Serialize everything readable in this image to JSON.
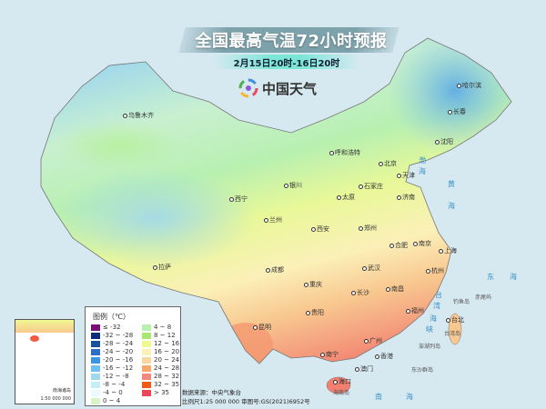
{
  "header": {
    "title": "全国最高气温72小时预报",
    "subtitle": "2月15日20时-16日20时",
    "logo_text": "中国天气"
  },
  "legend": {
    "title": "图例（℃）",
    "items": [
      {
        "label": "≤ -32",
        "color": "#7a0f7a"
      },
      {
        "label": "-32 ~ -28",
        "color": "#0a2a78"
      },
      {
        "label": "-28 ~ -24",
        "color": "#1a4f9c"
      },
      {
        "label": "-24 ~ -20",
        "color": "#2d6fc4"
      },
      {
        "label": "-20 ~ -16",
        "color": "#3b95e0"
      },
      {
        "label": "-16 ~ -12",
        "color": "#6ec0f0"
      },
      {
        "label": "-12 ~ -8",
        "color": "#a0d8ec"
      },
      {
        "label": "-8 ~ -4",
        "color": "#c4eef5"
      },
      {
        "label": "-4 ~ 0",
        "color": "#eafaff"
      },
      {
        "label": "0 ~ 4",
        "color": "#d8f5c8"
      },
      {
        "label": "4 ~ 8",
        "color": "#b8f0b0"
      },
      {
        "label": "8 ~ 12",
        "color": "#a8e870"
      },
      {
        "label": "12 ~ 16",
        "color": "#f0f890"
      },
      {
        "label": "16 ~ 20",
        "color": "#fbf0b8"
      },
      {
        "label": "20 ~ 24",
        "color": "#f8d8a0"
      },
      {
        "label": "24 ~ 28",
        "color": "#f8a868"
      },
      {
        "label": "28 ~ 32",
        "color": "#f28880"
      },
      {
        "label": "32 ~ 35",
        "color": "#f05a18"
      },
      {
        "label": "> 35",
        "color": "#e84858"
      }
    ]
  },
  "footer": {
    "source": "数据来源：中央气象台",
    "scale": "比例尺1:25 000 000   审图号:GS(2021)6952号"
  },
  "inset": {
    "title": "南海诸岛",
    "scale": "1:50 000 000"
  },
  "cities": [
    "乌鲁木齐",
    "哈尔滨",
    "长春",
    "沈阳",
    "呼和浩特",
    "北京",
    "天津",
    "石家庄",
    "太原",
    "济南",
    "银川",
    "西宁",
    "兰州",
    "郑州",
    "西安",
    "合肥",
    "南京",
    "上海",
    "武汉",
    "杭州",
    "成都",
    "拉萨",
    "重庆",
    "长沙",
    "南昌",
    "贵阳",
    "福州",
    "台北",
    "昆明",
    "南宁",
    "广州",
    "香港",
    "澳门",
    "海口"
  ],
  "seas": [
    "渤",
    "海",
    "黄",
    "海",
    "东",
    "海",
    "台",
    "湾",
    "海",
    "峡",
    "南",
    "海"
  ],
  "islands": [
    "钓鱼岛",
    "赤尾屿",
    "台湾岛",
    "澎湖列岛",
    "东沙群岛",
    "海南岛"
  ]
}
